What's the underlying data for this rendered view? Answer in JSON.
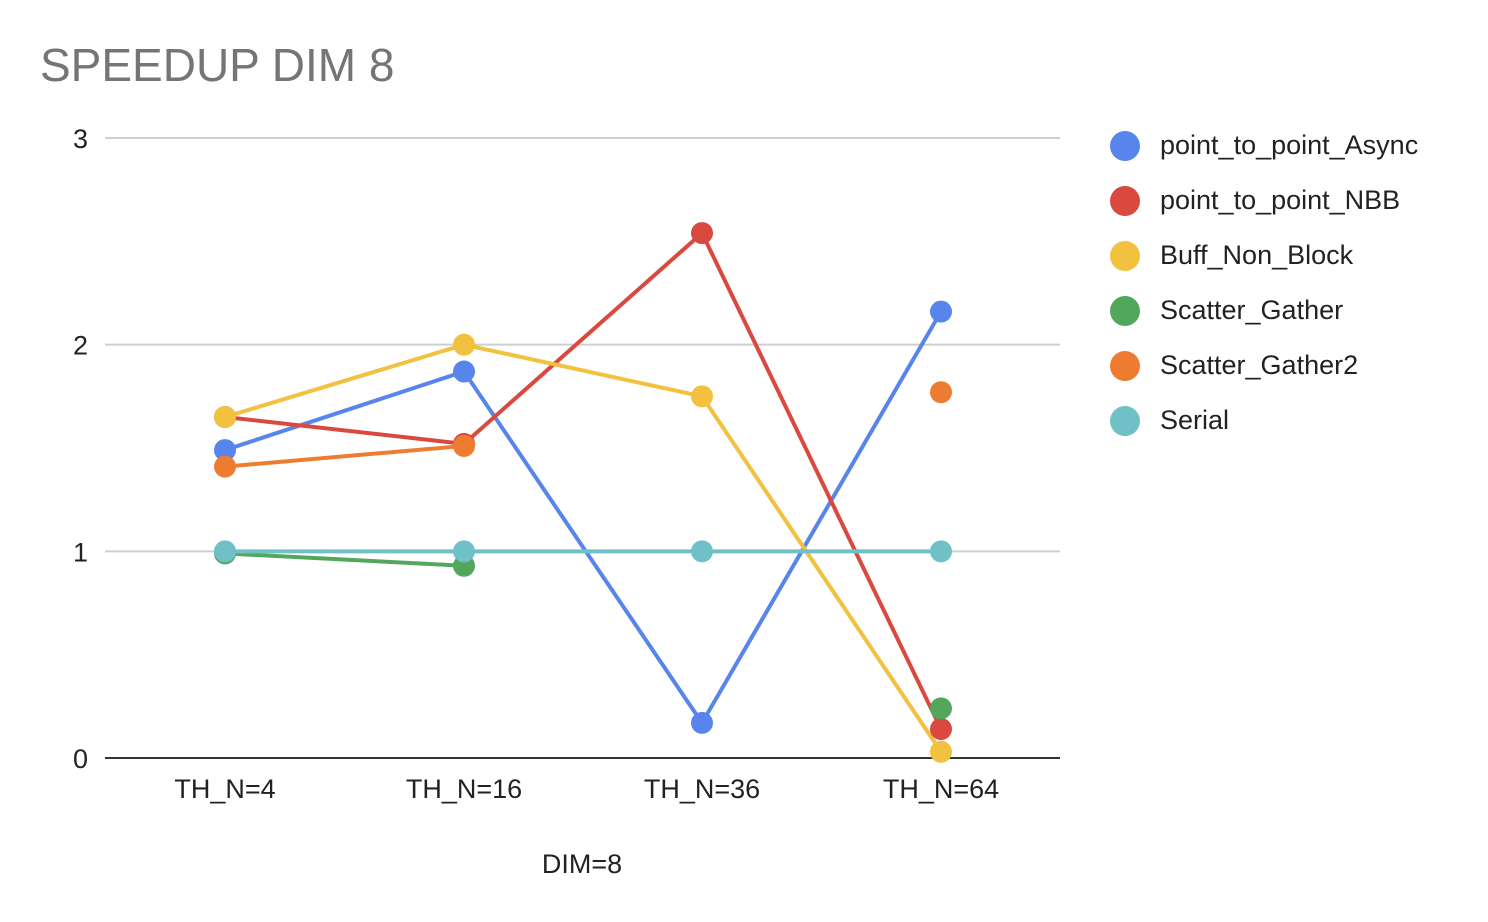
{
  "chart_data": {
    "type": "line",
    "title": "SPEEDUP DIM 8",
    "xlabel": "DIM=8",
    "ylabel": "",
    "categories": [
      "TH_N=4",
      "TH_N=16",
      "TH_N=36",
      "TH_N=64"
    ],
    "ylim": [
      0,
      3
    ],
    "yticks": [
      "0",
      "1",
      "2",
      "3"
    ],
    "grid": true,
    "legend_position": "right",
    "series": [
      {
        "name": "point_to_point_Async",
        "color": "#5785ec",
        "values": [
          1.49,
          1.87,
          0.17,
          2.16
        ]
      },
      {
        "name": "point_to_point_NBB",
        "color": "#d9493f",
        "values": [
          1.65,
          1.52,
          2.54,
          0.14
        ]
      },
      {
        "name": "Buff_Non_Block",
        "color": "#f1c13f",
        "values": [
          1.65,
          2.0,
          1.75,
          0.03
        ]
      },
      {
        "name": "Scatter_Gather",
        "color": "#52a75c",
        "values": [
          0.99,
          0.93,
          null,
          0.24
        ]
      },
      {
        "name": "Scatter_Gather2",
        "color": "#ee7c30",
        "values": [
          1.41,
          1.51,
          null,
          1.77
        ]
      },
      {
        "name": "Serial",
        "color": "#6fc0c7",
        "values": [
          1.0,
          1.0,
          1.0,
          1.0
        ]
      }
    ]
  }
}
